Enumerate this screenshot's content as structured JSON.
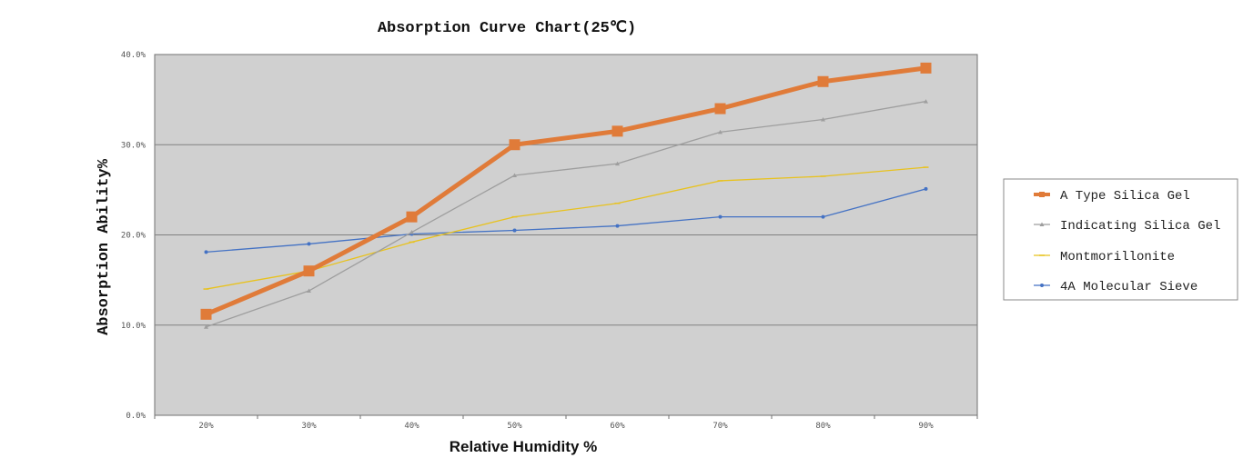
{
  "chart_data": {
    "type": "line",
    "title": "Absorption Curve Chart(25℃)",
    "xlabel": "Relative Humidity %",
    "ylabel": "Absorption Ability%",
    "categories": [
      "20%",
      "30%",
      "40%",
      "50%",
      "60%",
      "70%",
      "80%",
      "90%"
    ],
    "y_ticks": [
      "0.0%",
      "10.0%",
      "20.0%",
      "30.0%",
      "40.0%"
    ],
    "ylim": [
      0,
      40
    ],
    "grid": true,
    "legend_position": "right",
    "series": [
      {
        "name": "A Type Silica Gel",
        "values": [
          11.2,
          16.0,
          22.0,
          30.0,
          31.5,
          34.0,
          37.0,
          38.5
        ],
        "color": "#E07B39",
        "marker": "square",
        "weight": "bold"
      },
      {
        "name": "Indicating Silica Gel",
        "values": [
          9.8,
          13.8,
          20.3,
          26.6,
          27.9,
          31.4,
          32.8,
          34.8
        ],
        "color": "#9E9E9E",
        "marker": "triangle",
        "weight": "thin"
      },
      {
        "name": "Montmorillonite",
        "values": [
          14.0,
          16.0,
          19.2,
          22.0,
          23.5,
          26.0,
          26.5,
          27.5
        ],
        "color": "#E8C21E",
        "marker": "dash",
        "weight": "thin"
      },
      {
        "name": "4A Molecular Sieve",
        "values": [
          18.1,
          19.0,
          20.1,
          20.5,
          21.0,
          22.0,
          22.0,
          25.1
        ],
        "color": "#4472C4",
        "marker": "star",
        "weight": "thin"
      }
    ],
    "plot_background": "#D0D0D0",
    "gridline_color": "#808080"
  }
}
